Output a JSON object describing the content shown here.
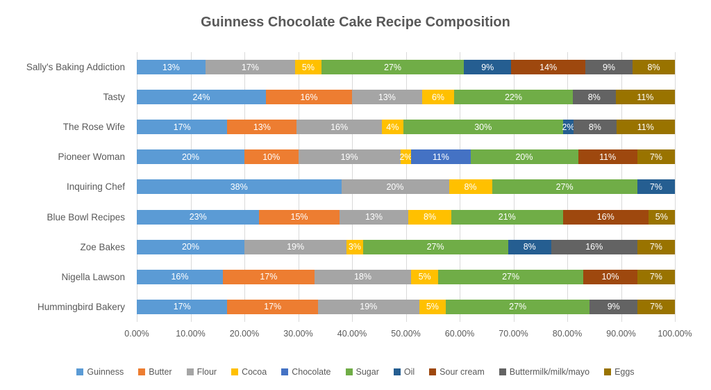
{
  "title": "Guinness Chocolate Cake Recipe Composition",
  "colors": {
    "background": "#ffffff",
    "text": "#595959",
    "gridline": "#d9d9d9",
    "data_label": "#ffffff"
  },
  "chart_data": {
    "type": "bar",
    "orientation": "horizontal",
    "stacked": true,
    "grid": true,
    "legend_position": "bottom",
    "title": "Guinness Chocolate Cake Recipe Composition",
    "xlabel": "",
    "ylabel": "",
    "xlim": [
      0,
      100
    ],
    "x_axis": {
      "ticks": [
        "0.00%",
        "10.00%",
        "20.00%",
        "30.00%",
        "40.00%",
        "50.00%",
        "60.00%",
        "70.00%",
        "80.00%",
        "90.00%",
        "100.00%"
      ]
    },
    "categories": [
      "Sally's Baking Addiction",
      "Tasty",
      "The Rose Wife",
      "Pioneer Woman",
      "Inquiring Chef",
      "Blue Bowl Recipes",
      "Zoe Bakes",
      "Nigella Lawson",
      "Hummingbird Bakery"
    ],
    "value_suffix": "%",
    "series": [
      {
        "name": "Guinness",
        "color": "#5B9BD5",
        "values": [
          13,
          24,
          17,
          20,
          38,
          23,
          20,
          16,
          17
        ]
      },
      {
        "name": "Butter",
        "color": "#ED7D31",
        "values": [
          0,
          16,
          13,
          10,
          0,
          15,
          0,
          17,
          17
        ]
      },
      {
        "name": "Flour",
        "color": "#A5A5A5",
        "values": [
          17,
          13,
          16,
          19,
          20,
          13,
          19,
          18,
          19
        ]
      },
      {
        "name": "Cocoa",
        "color": "#FFC000",
        "values": [
          5,
          6,
          4,
          2,
          8,
          8,
          3,
          5,
          5
        ]
      },
      {
        "name": "Chocolate",
        "color": "#4472C4",
        "values": [
          0,
          0,
          0,
          11,
          0,
          0,
          0,
          0,
          0
        ]
      },
      {
        "name": "Sugar",
        "color": "#70AD47",
        "values": [
          27,
          22,
          30,
          20,
          27,
          21,
          27,
          27,
          27
        ]
      },
      {
        "name": "Oil",
        "color": "#255E91",
        "values": [
          9,
          0,
          2,
          0,
          7,
          0,
          8,
          0,
          0
        ]
      },
      {
        "name": "Sour cream",
        "color": "#9E480E",
        "values": [
          14,
          0,
          0,
          11,
          0,
          16,
          0,
          10,
          0
        ]
      },
      {
        "name": "Buttermilk/milk/mayo",
        "color": "#636363",
        "values": [
          9,
          8,
          8,
          0,
          0,
          0,
          16,
          0,
          9
        ]
      },
      {
        "name": "Eggs",
        "color": "#997300",
        "values": [
          8,
          11,
          11,
          7,
          0,
          5,
          7,
          7,
          7
        ]
      }
    ]
  }
}
